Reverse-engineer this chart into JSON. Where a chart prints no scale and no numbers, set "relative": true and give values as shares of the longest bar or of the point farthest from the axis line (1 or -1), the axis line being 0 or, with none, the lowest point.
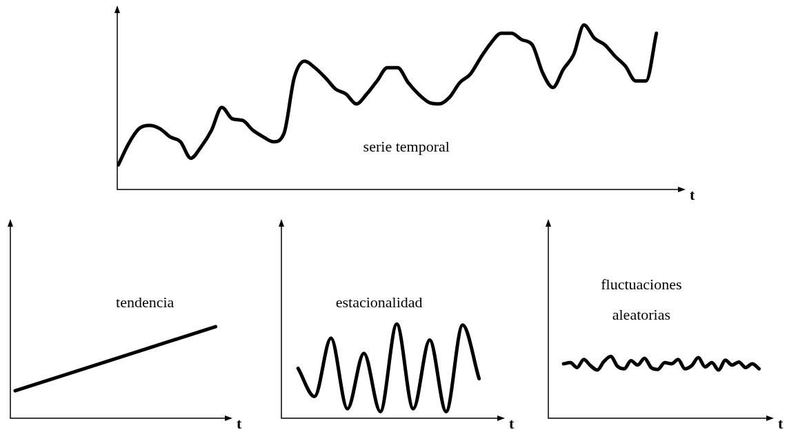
{
  "chart_data": [
    {
      "type": "line",
      "title": "serie temporal",
      "xlabel": "t",
      "relative": true,
      "categories": [
        null,
        null,
        null,
        null,
        null,
        null,
        null,
        null,
        null,
        null,
        null,
        null,
        null,
        null,
        null,
        null,
        null,
        null,
        null,
        null,
        null,
        null,
        null,
        null,
        null,
        null,
        null,
        null,
        null,
        null,
        null,
        null,
        null,
        null,
        null,
        null,
        null,
        null,
        null,
        null,
        null,
        null,
        null,
        null,
        null,
        null,
        null,
        null,
        null,
        null,
        null,
        null,
        null
      ],
      "series": [
        {
          "color": "#000000",
          "values": [
            0.15,
            0.28,
            0.37,
            0.39,
            0.37,
            0.32,
            0.29,
            0.19,
            0.26,
            0.36,
            0.5,
            0.43,
            0.42,
            0.36,
            0.32,
            0.29,
            0.34,
            0.68,
            0.78,
            0.74,
            0.68,
            0.61,
            0.58,
            0.52,
            0.58,
            0.66,
            0.74,
            0.74,
            0.65,
            0.58,
            0.53,
            0.52,
            0.56,
            0.65,
            0.7,
            0.8,
            0.89,
            0.95,
            0.95,
            0.91,
            0.88,
            0.71,
            0.62,
            0.73,
            0.82,
            1.0,
            0.92,
            0.88,
            0.81,
            0.75,
            0.66,
            0.66,
            0.95
          ]
        }
      ],
      "marker": "none",
      "line_style": "solid",
      "legend": false
    },
    {
      "type": "line",
      "title": "tendencia",
      "xlabel": "t",
      "relative": true,
      "categories": [
        null,
        null
      ],
      "series": [
        {
          "color": "#000000",
          "values": [
            0.3,
            1.0
          ]
        }
      ],
      "marker": "none",
      "line_style": "solid",
      "legend": false
    },
    {
      "type": "line",
      "title": "estacionalidad",
      "xlabel": "t",
      "relative": true,
      "categories": [
        null,
        null,
        null,
        null,
        null,
        null,
        null,
        null,
        null,
        null,
        null,
        null
      ],
      "series": [
        {
          "color": "#000000",
          "values": [
            0.53,
            0.23,
            0.85,
            0.1,
            0.69,
            0.07,
            1.0,
            0.1,
            0.83,
            0.07,
            0.99,
            0.42
          ]
        }
      ],
      "marker": "none",
      "line_style": "solid",
      "legend": false
    },
    {
      "type": "line",
      "title": "fluctuaciones aleatorias",
      "xlabel": "t",
      "relative": true,
      "categories": [
        null,
        null,
        null,
        null,
        null,
        null,
        null,
        null,
        null,
        null,
        null,
        null,
        null,
        null,
        null,
        null,
        null,
        null,
        null,
        null,
        null,
        null,
        null,
        null,
        null,
        null,
        null,
        null,
        null,
        null
      ],
      "series": [
        {
          "color": "#000000",
          "values": [
            0.88,
            0.9,
            0.82,
            0.95,
            0.85,
            0.78,
            0.92,
            1.0,
            0.84,
            0.8,
            0.93,
            0.86,
            0.97,
            0.82,
            0.79,
            0.9,
            0.88,
            0.95,
            0.8,
            0.85,
            0.98,
            0.83,
            0.9,
            0.78,
            0.94,
            0.86,
            0.91,
            0.82,
            0.88,
            0.8
          ]
        }
      ],
      "marker": "none",
      "line_style": "solid",
      "legend": false
    }
  ]
}
